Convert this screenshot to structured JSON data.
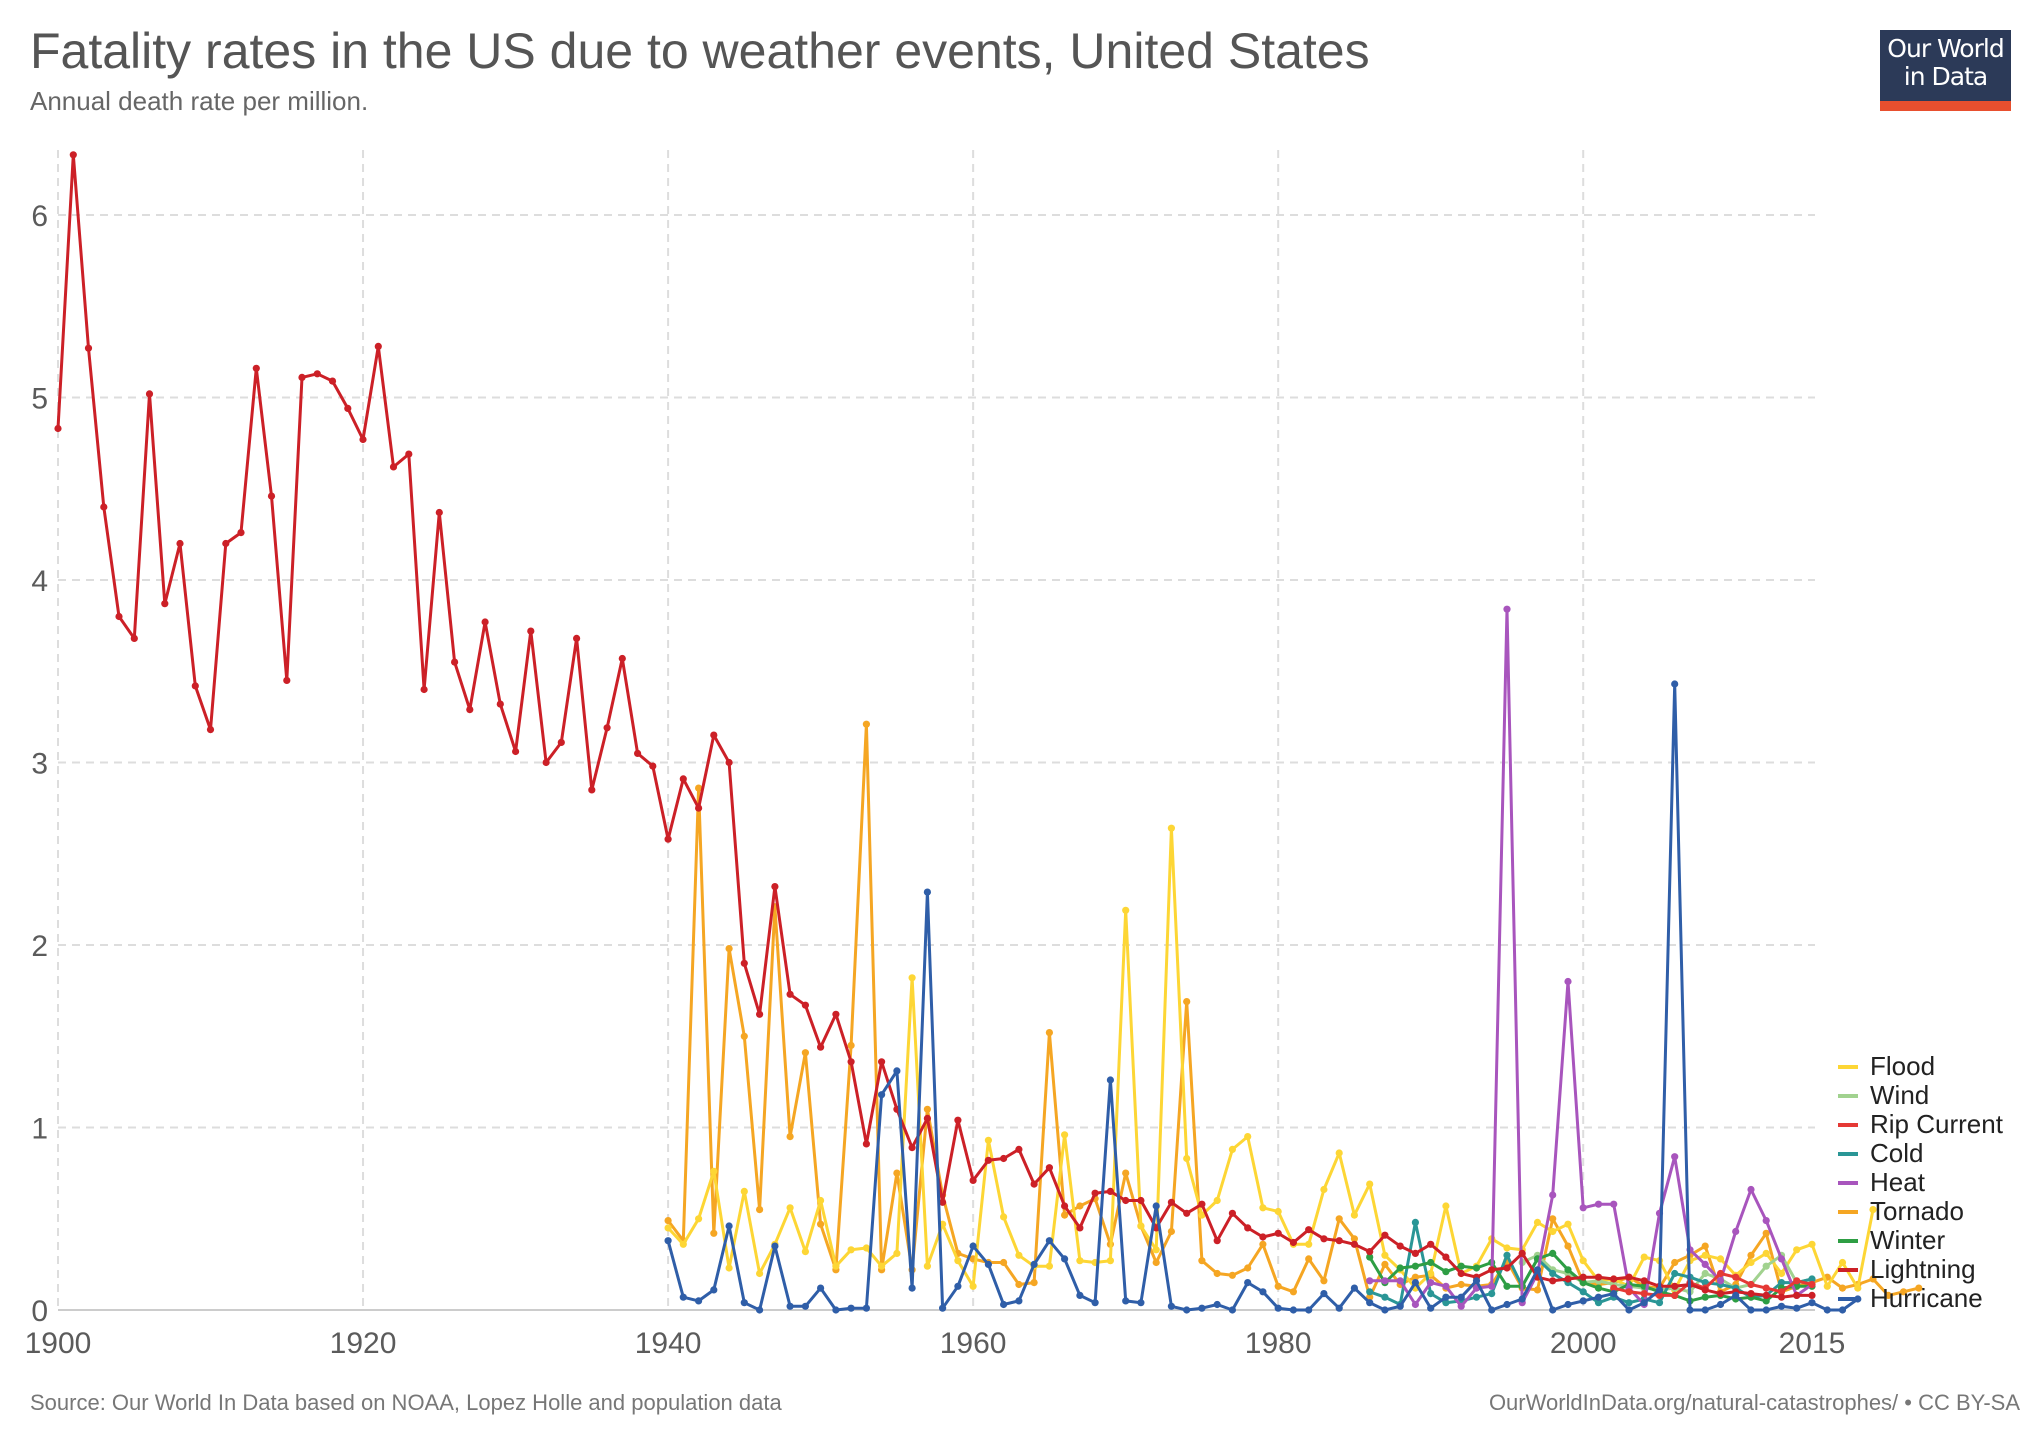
{
  "header": {
    "title": "Fatality rates in the US due to weather events, United States",
    "subtitle": "Annual death rate per million."
  },
  "logo": {
    "line1": "Our World",
    "line2": "in Data"
  },
  "footer": {
    "source": "Source: Our World In Data based on NOAA, Lopez Holle and population data",
    "link": "OurWorldInData.org/natural-catastrophes/ • CC BY-SA"
  },
  "chart_data": {
    "type": "line",
    "title": "Fatality rates in the US due to weather events, United States",
    "subtitle": "Annual death rate per million.",
    "xlabel": "",
    "ylabel": "",
    "xlim": [
      1900,
      2015
    ],
    "ylim": [
      0,
      6.3
    ],
    "x_ticks": [
      "1900",
      "1920",
      "1940",
      "1960",
      "1980",
      "2000",
      "2015"
    ],
    "x_tick_values": [
      1900,
      1920,
      1940,
      1960,
      1980,
      2000,
      2015
    ],
    "y_ticks": [
      "0",
      "1",
      "2",
      "3",
      "4",
      "5",
      "6"
    ],
    "y_tick_values": [
      0,
      1,
      2,
      3,
      4,
      5,
      6
    ],
    "grid": true,
    "legend_position": "bottom-right",
    "series": [
      {
        "name": "Flood",
        "color": "#fdd635",
        "start_year": 1940,
        "values": [
          0.45,
          0.36,
          0.5,
          0.76,
          0.23,
          0.65,
          0.2,
          0.36,
          0.56,
          0.32,
          0.6,
          0.24,
          0.33,
          0.34,
          0.24,
          0.31,
          1.82,
          0.24,
          0.47,
          0.27,
          0.13,
          0.93,
          0.51,
          0.3,
          0.24,
          0.24,
          0.96,
          0.27,
          0.26,
          0.27,
          2.19,
          0.46,
          0.33,
          2.64,
          0.83,
          0.52,
          0.6,
          0.88,
          0.95,
          0.56,
          0.54,
          0.36,
          0.36,
          0.66,
          0.86,
          0.52,
          0.69,
          0.3,
          0.22,
          0.12,
          0.2,
          0.57,
          0.2,
          0.24,
          0.39,
          0.34,
          0.33,
          0.48,
          0.43,
          0.47,
          0.27,
          0.16,
          0.17,
          0.13,
          0.29,
          0.27,
          0.11,
          0.27,
          0.3,
          0.28,
          0.19,
          0.26,
          0.31,
          0.2,
          0.33,
          0.36,
          0.13,
          0.26,
          0.12,
          0.55
        ],
        "year_offsets": null
      },
      {
        "name": "Wind",
        "color": "#a1d28f",
        "start_year": 1996,
        "values": [
          0.26,
          0.3,
          0.22,
          0.2,
          0.15,
          0.16,
          0.14,
          0.13,
          0.12,
          0.11,
          0.12,
          0.1,
          0.2,
          0.17,
          0.12,
          0.14,
          0.24,
          0.3,
          0.15,
          0.17
        ]
      },
      {
        "name": "Rip Current",
        "color": "#e53935",
        "start_year": 2002,
        "values": [
          0.12,
          0.1,
          0.09,
          0.08,
          0.08,
          0.15,
          0.12,
          0.2,
          0.18,
          0.14,
          0.12,
          0.1,
          0.16,
          0.14
        ]
      },
      {
        "name": "Cold",
        "color": "#2a9696",
        "start_year": 1986,
        "values": [
          0.1,
          0.07,
          0.03,
          0.48,
          0.09,
          0.04,
          0.05,
          0.07,
          0.09,
          0.3,
          0.13,
          0.28,
          0.2,
          0.15,
          0.1,
          0.04,
          0.07,
          0.04,
          0.06,
          0.04,
          0.2,
          0.18,
          0.15,
          0.14,
          0.12,
          0.07,
          0.08,
          0.15,
          0.15,
          0.17
        ]
      },
      {
        "name": "Heat",
        "color": "#a855bd",
        "start_year": 1986,
        "values": [
          0.16,
          0.16,
          0.16,
          0.03,
          0.15,
          0.13,
          0.02,
          0.12,
          0.13,
          3.84,
          0.04,
          0.2,
          0.63,
          1.8,
          0.56,
          0.58,
          0.58,
          0.12,
          0.03,
          0.53,
          0.84,
          0.33,
          0.25,
          0.16,
          0.43,
          0.66,
          0.49,
          0.28,
          0.08,
          0.14
        ]
      },
      {
        "name": "Tornado",
        "color": "#f5a623",
        "start_year": 1940,
        "values": [
          0.49,
          0.38,
          2.86,
          0.42,
          1.98,
          1.5,
          0.55,
          2.21,
          0.95,
          1.41,
          0.47,
          0.22,
          1.45,
          3.21,
          0.22,
          0.75,
          0.22,
          1.1,
          0.63,
          0.31,
          0.28,
          0.26,
          0.26,
          0.14,
          0.15,
          1.52,
          0.52,
          0.57,
          0.61,
          0.36,
          0.75,
          0.46,
          0.26,
          0.43,
          1.69,
          0.27,
          0.2,
          0.19,
          0.23,
          0.36,
          0.13,
          0.1,
          0.28,
          0.16,
          0.5,
          0.39,
          0.07,
          0.25,
          0.14,
          0.18,
          0.19,
          0.12,
          0.14,
          0.13,
          0.14,
          0.27,
          0.12,
          0.11,
          0.5,
          0.35,
          0.15,
          0.14,
          0.15,
          0.18,
          0.13,
          0.12,
          0.26,
          0.3,
          0.35,
          0.1,
          0.14,
          0.3,
          0.42,
          0.1,
          0.13,
          0.15,
          0.18,
          0.12,
          0.14,
          0.17,
          0.08,
          0.1,
          0.12
        ],
        "year_offsets": null
      },
      {
        "name": "Winter",
        "color": "#2e9e44",
        "start_year": 1986,
        "values": [
          0.29,
          0.15,
          0.23,
          0.24,
          0.26,
          0.21,
          0.24,
          0.23,
          0.26,
          0.13,
          0.13,
          0.28,
          0.31,
          0.22,
          0.15,
          0.12,
          0.1,
          0.14,
          0.13,
          0.1,
          0.08,
          0.05,
          0.07,
          0.08,
          0.06,
          0.07,
          0.05,
          0.12,
          0.13,
          0.13
        ]
      },
      {
        "name": "Lightning",
        "color": "#cc2027",
        "start_year": 1900,
        "values": [
          4.83,
          6.33,
          5.27,
          4.4,
          3.8,
          3.68,
          5.02,
          3.87,
          4.2,
          3.42,
          3.18,
          4.2,
          4.26,
          5.16,
          4.46,
          3.45,
          5.11,
          5.13,
          5.09,
          4.94,
          4.77,
          5.28,
          4.62,
          4.69,
          3.4,
          4.37,
          3.55,
          3.29,
          3.77,
          3.32,
          3.06,
          3.72,
          3.0,
          3.11,
          3.68,
          2.85,
          3.19,
          3.57,
          3.05,
          2.98,
          2.58,
          2.91,
          2.75,
          3.15,
          3.0,
          1.9,
          1.62,
          2.32,
          1.73,
          1.67,
          1.44,
          1.62,
          1.36,
          0.91,
          1.36,
          1.1,
          0.89,
          1.05,
          0.59,
          1.04,
          0.71,
          0.82,
          0.83,
          0.88,
          0.69,
          0.78,
          0.57,
          0.45,
          0.64,
          0.65,
          0.6,
          0.6,
          0.45,
          0.59,
          0.53,
          0.58,
          0.38,
          0.53,
          0.45,
          0.4,
          0.42,
          0.37,
          0.44,
          0.39,
          0.38,
          0.36,
          0.32,
          0.41,
          0.35,
          0.31,
          0.36,
          0.29,
          0.2,
          0.18,
          0.22,
          0.23,
          0.31,
          0.18,
          0.16,
          0.17,
          0.18,
          0.18,
          0.17,
          0.18,
          0.16,
          0.13,
          0.13,
          0.14,
          0.11,
          0.09,
          0.1,
          0.09,
          0.08,
          0.07,
          0.08,
          0.08
        ]
      },
      {
        "name": "Hurricane",
        "color": "#2f5ea8",
        "start_year": 1940,
        "values": [
          0.38,
          0.07,
          0.05,
          0.11,
          0.46,
          0.04,
          0.0,
          0.35,
          0.02,
          0.02,
          0.12,
          0.0,
          0.01,
          0.01,
          1.18,
          1.31,
          0.12,
          2.29,
          0.01,
          0.13,
          0.35,
          0.25,
          0.03,
          0.05,
          0.25,
          0.38,
          0.28,
          0.08,
          0.04,
          1.26,
          0.05,
          0.04,
          0.57,
          0.02,
          0.0,
          0.01,
          0.03,
          0.0,
          0.15,
          0.1,
          0.01,
          0.0,
          0.0,
          0.09,
          0.01,
          0.12,
          0.04,
          0.0,
          0.02,
          0.15,
          0.01,
          0.07,
          0.07,
          0.16,
          0.0,
          0.03,
          0.06,
          0.22,
          0.0,
          0.03,
          0.05,
          0.07,
          0.09,
          0.0,
          0.04,
          0.11,
          3.43,
          0.0,
          0.0,
          0.03,
          0.08,
          0.0,
          0.0,
          0.02,
          0.01,
          0.04,
          0.0,
          0.0,
          0.06
        ],
        "year_offsets": null
      }
    ]
  }
}
